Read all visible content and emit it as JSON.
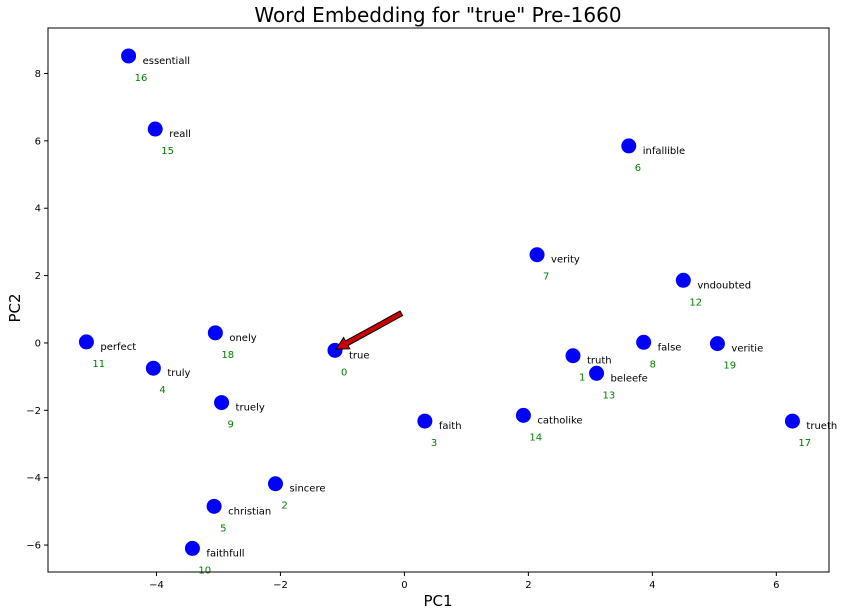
{
  "chart_data": {
    "type": "scatter",
    "title": "Word Embedding for \"true\" Pre-1660",
    "xlabel": "PC1",
    "ylabel": "PC2",
    "xlim": [
      -5.75,
      6.85
    ],
    "ylim": [
      -6.8,
      9.35
    ],
    "xticks": [
      -4,
      -2,
      0,
      2,
      4,
      6
    ],
    "yticks": [
      -6,
      -4,
      -2,
      0,
      2,
      4,
      6,
      8
    ],
    "grid": false,
    "marker_color": "#0000ff",
    "highlight_color": "#ff0000",
    "index_color": "#008000",
    "arrow_color": "#cc0000",
    "highlight_index": 0,
    "arrow": {
      "from": [
        -0.05,
        0.88
      ],
      "to": [
        -1.1,
        -0.18
      ]
    },
    "points": [
      {
        "index": 0,
        "word": "true",
        "x": -1.12,
        "y": -0.22
      },
      {
        "index": 1,
        "word": "truth",
        "x": 2.72,
        "y": -0.38
      },
      {
        "index": 2,
        "word": "sincere",
        "x": -2.08,
        "y": -4.18
      },
      {
        "index": 3,
        "word": "faith",
        "x": 0.33,
        "y": -2.32
      },
      {
        "index": 4,
        "word": "truly",
        "x": -4.05,
        "y": -0.75
      },
      {
        "index": 5,
        "word": "christian",
        "x": -3.07,
        "y": -4.85
      },
      {
        "index": 6,
        "word": "infallible",
        "x": 3.62,
        "y": 5.85
      },
      {
        "index": 7,
        "word": "verity",
        "x": 2.14,
        "y": 2.62
      },
      {
        "index": 8,
        "word": "false",
        "x": 3.86,
        "y": 0.02
      },
      {
        "index": 9,
        "word": "truely",
        "x": -2.95,
        "y": -1.77
      },
      {
        "index": 10,
        "word": "faithfull",
        "x": -3.42,
        "y": -6.1
      },
      {
        "index": 11,
        "word": "perfect",
        "x": -5.13,
        "y": 0.03
      },
      {
        "index": 12,
        "word": "vndoubted",
        "x": 4.5,
        "y": 1.86
      },
      {
        "index": 13,
        "word": "beleefe",
        "x": 3.1,
        "y": -0.9
      },
      {
        "index": 14,
        "word": "catholike",
        "x": 1.92,
        "y": -2.15
      },
      {
        "index": 15,
        "word": "reall",
        "x": -4.02,
        "y": 6.35
      },
      {
        "index": 16,
        "word": "essentiall",
        "x": -4.45,
        "y": 8.52
      },
      {
        "index": 17,
        "word": "trueth",
        "x": 6.26,
        "y": -2.32
      },
      {
        "index": 18,
        "word": "onely",
        "x": -3.05,
        "y": 0.3
      },
      {
        "index": 19,
        "word": "veritie",
        "x": 5.05,
        "y": -0.02
      }
    ]
  }
}
